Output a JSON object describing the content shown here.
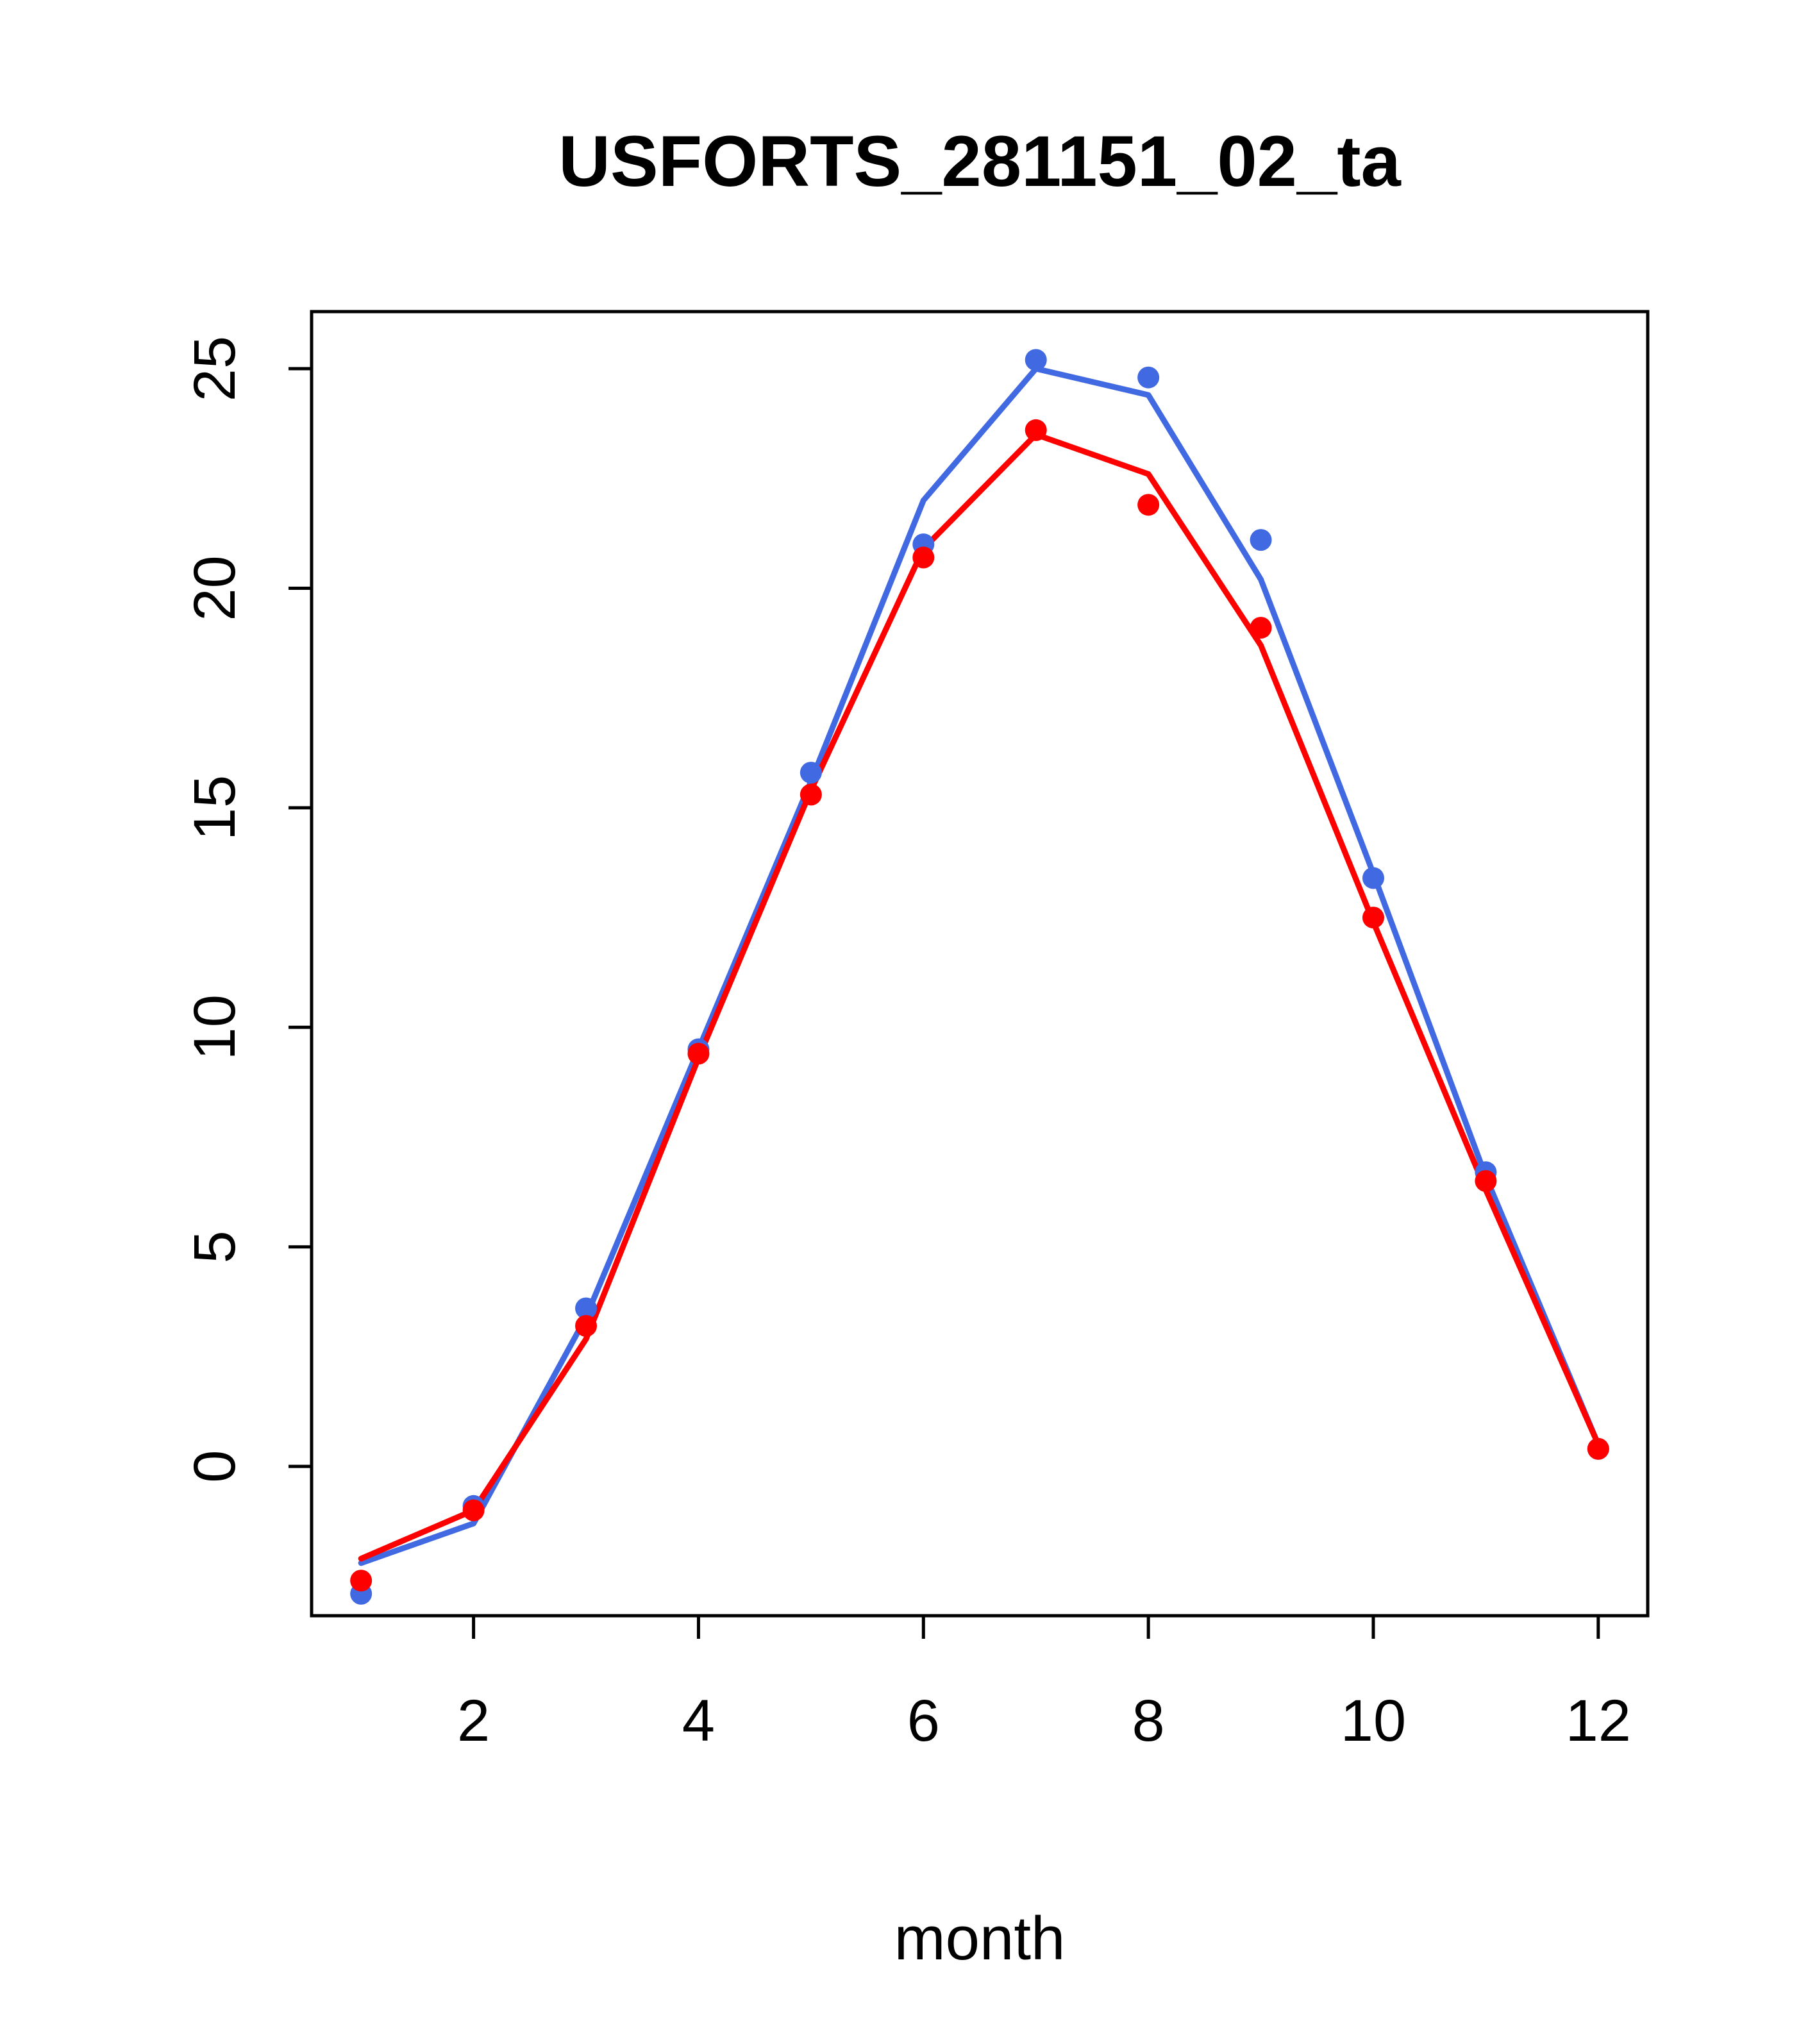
{
  "chart_data": {
    "type": "line",
    "title": "USFORTS_281151_02_ta",
    "xlabel": "month",
    "ylabel": "",
    "x": [
      1,
      2,
      3,
      4,
      5,
      6,
      7,
      8,
      9,
      10,
      11,
      12
    ],
    "xlim": [
      0.56,
      12.44
    ],
    "ylim": [
      -3.4,
      26.3
    ],
    "xticks": [
      2,
      4,
      6,
      8,
      10,
      12
    ],
    "yticks": [
      0,
      5,
      10,
      15,
      20,
      25
    ],
    "grid": false,
    "legend": "none",
    "colors": {
      "blue": "#4169E1",
      "red": "#FF0000",
      "axis": "#000000",
      "background": "#FFFFFF"
    },
    "series": [
      {
        "name": "blue-line",
        "kind": "line",
        "color": "#4169E1",
        "values": [
          -2.2,
          -1.3,
          3.4,
          9.5,
          15.6,
          22.0,
          25.0,
          24.4,
          20.2,
          13.5,
          6.6,
          0.5
        ]
      },
      {
        "name": "red-line",
        "kind": "line",
        "color": "#FF0000",
        "values": [
          -2.1,
          -1.0,
          2.9,
          9.3,
          15.4,
          20.9,
          23.5,
          22.6,
          18.7,
          12.4,
          6.3,
          0.5
        ]
      },
      {
        "name": "blue-points",
        "kind": "points",
        "color": "#4169E1",
        "values": [
          -2.9,
          -0.9,
          3.6,
          9.5,
          15.8,
          21.0,
          25.2,
          24.8,
          21.1,
          13.4,
          6.7,
          0.4
        ]
      },
      {
        "name": "red-points",
        "kind": "points",
        "color": "#FF0000",
        "values": [
          -2.6,
          -1.0,
          3.2,
          9.4,
          15.3,
          20.7,
          23.6,
          21.9,
          19.1,
          12.5,
          6.5,
          0.4
        ]
      }
    ]
  }
}
